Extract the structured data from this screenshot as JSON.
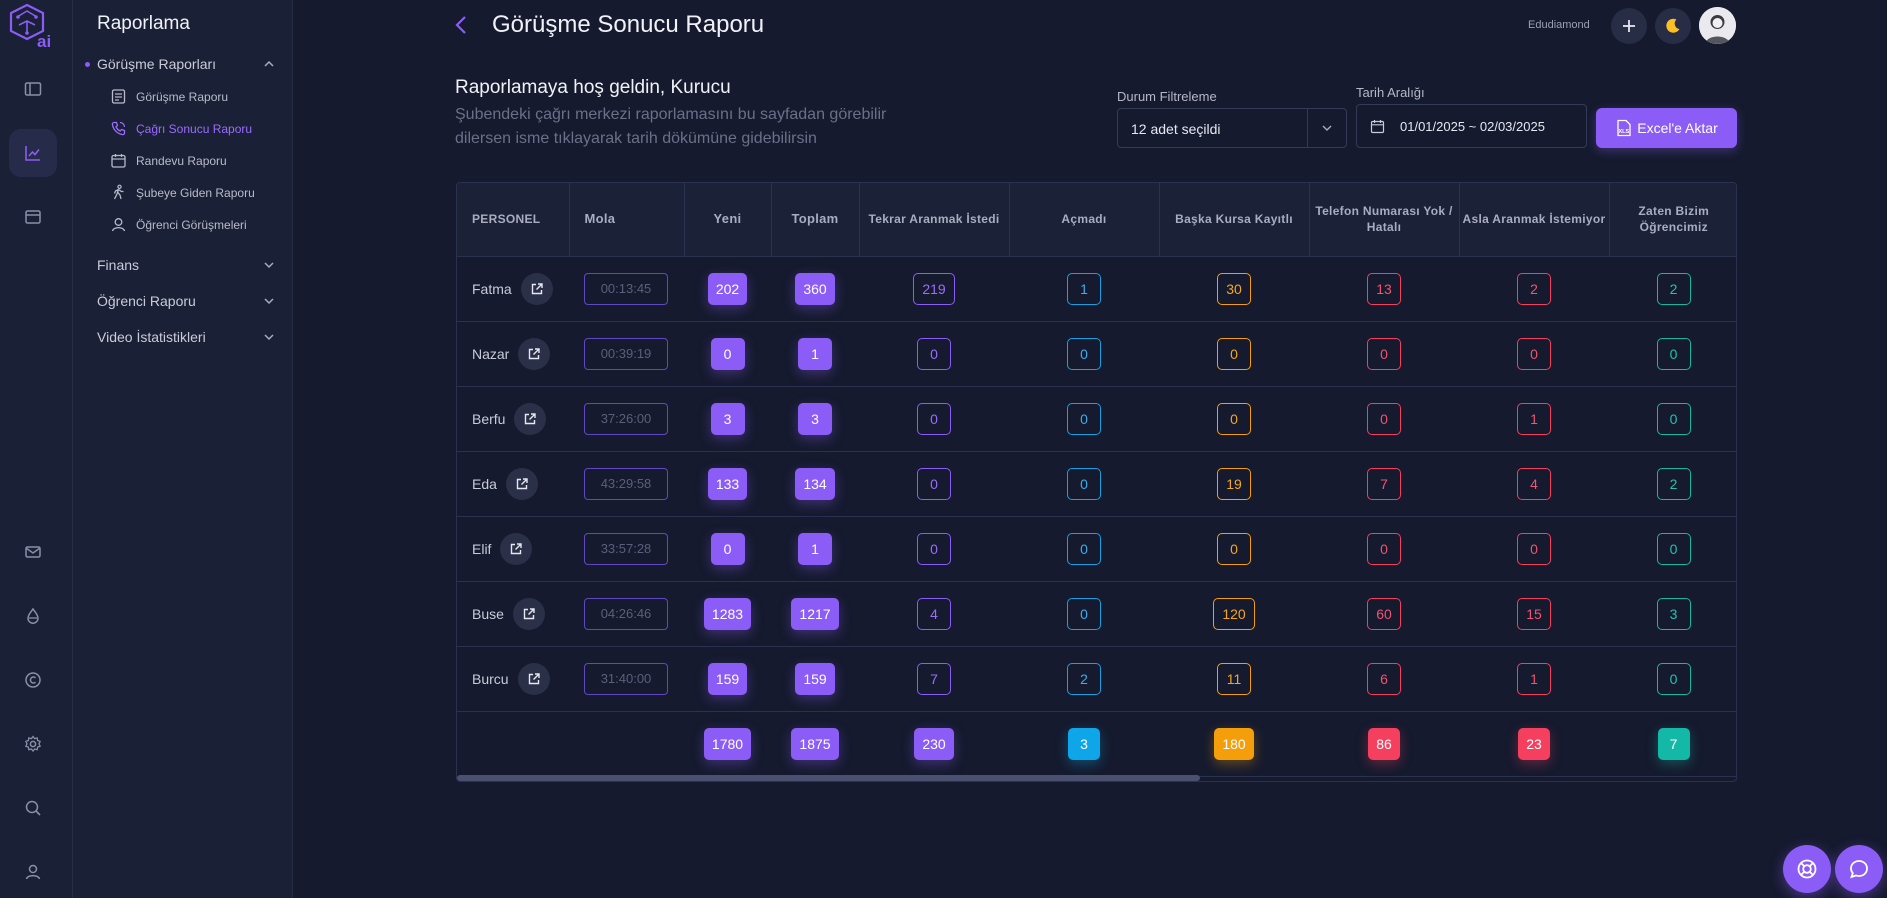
{
  "rail": {
    "logo_text": "ai",
    "top_icons": [
      "sidebar-toggle-icon",
      "chart-line-icon",
      "window-icon"
    ],
    "bottom_icons": [
      "mail-icon",
      "drop-icon",
      "copyright-icon",
      "gear-icon",
      "search-icon",
      "user-icon"
    ]
  },
  "sidebar": {
    "title": "Raporlama",
    "groups": [
      {
        "label": "Görüşme Raporları",
        "expanded": true
      },
      {
        "label": "Finans",
        "expanded": false
      },
      {
        "label": "Öğrenci Raporu",
        "expanded": false
      },
      {
        "label": "Video İstatistikleri",
        "expanded": false
      }
    ],
    "items": [
      {
        "label": "Görüşme Raporu",
        "icon": "document-icon"
      },
      {
        "label": "Çağrı Sonucu Raporu",
        "icon": "phone-call-icon",
        "active": true
      },
      {
        "label": "Randevu Raporu",
        "icon": "calendar-icon"
      },
      {
        "label": "Şubeye Giden Raporu",
        "icon": "walking-icon"
      },
      {
        "label": "Öğrenci Görüşmeleri",
        "icon": "user-icon"
      }
    ]
  },
  "header": {
    "title": "Görüşme Sonucu Raporu",
    "username": "Edudiamond"
  },
  "welcome": {
    "title": "Raporlamaya hoş geldin, Kurucu",
    "subtitle": "Şubendeki çağrı merkezi raporlamasını bu sayfadan görebilir dilersen isme tıklayarak tarih dökümüne gidebilirsin"
  },
  "filters": {
    "status_label": "Durum Filtreleme",
    "status_value": "12 adet seçildi",
    "date_label": "Tarih Aralığı",
    "date_value": "01/01/2025 ~ 02/03/2025",
    "excel_label": "Excel'e Aktar",
    "excel_badge": "XLS"
  },
  "table": {
    "columns": [
      {
        "label": "PERSONEL"
      },
      {
        "label": "Mola"
      },
      {
        "label": "Yeni"
      },
      {
        "label": "Toplam"
      },
      {
        "label": "Tekrar Aranmak İstedi"
      },
      {
        "label": "Açmadı"
      },
      {
        "label": "Başka Kursa Kayıtlı"
      },
      {
        "label": "Telefon Numarası Yok / Hatalı"
      },
      {
        "label": "Asla Aranmak İstemiyor"
      },
      {
        "label": "Zaten Bizim Öğrencimiz"
      }
    ],
    "rows": [
      {
        "name": "Fatma",
        "mola": "00:13:45",
        "yeni": "202",
        "toplam": "360",
        "tekrar": "219",
        "acmadi": "1",
        "baska": "30",
        "telefon": "13",
        "asla": "2",
        "zaten": "2"
      },
      {
        "name": "Nazar",
        "mola": "00:39:19",
        "yeni": "0",
        "toplam": "1",
        "tekrar": "0",
        "acmadi": "0",
        "baska": "0",
        "telefon": "0",
        "asla": "0",
        "zaten": "0"
      },
      {
        "name": "Berfu",
        "mola": "37:26:00",
        "yeni": "3",
        "toplam": "3",
        "tekrar": "0",
        "acmadi": "0",
        "baska": "0",
        "telefon": "0",
        "asla": "1",
        "zaten": "0"
      },
      {
        "name": "Eda",
        "mola": "43:29:58",
        "yeni": "133",
        "toplam": "134",
        "tekrar": "0",
        "acmadi": "0",
        "baska": "19",
        "telefon": "7",
        "asla": "4",
        "zaten": "2"
      },
      {
        "name": "Elif",
        "mola": "33:57:28",
        "yeni": "0",
        "toplam": "1",
        "tekrar": "0",
        "acmadi": "0",
        "baska": "0",
        "telefon": "0",
        "asla": "0",
        "zaten": "0"
      },
      {
        "name": "Buse",
        "mola": "04:26:46",
        "yeni": "1283",
        "toplam": "1217",
        "tekrar": "4",
        "acmadi": "0",
        "baska": "120",
        "telefon": "60",
        "asla": "15",
        "zaten": "3"
      },
      {
        "name": "Burcu",
        "mola": "31:40:00",
        "yeni": "159",
        "toplam": "159",
        "tekrar": "7",
        "acmadi": "2",
        "baska": "11",
        "telefon": "6",
        "asla": "1",
        "zaten": "0"
      }
    ],
    "totals": {
      "yeni": "1780",
      "toplam": "1875",
      "tekrar": "230",
      "acmadi": "3",
      "baska": "180",
      "telefon": "86",
      "asla": "23",
      "zaten": "7"
    }
  },
  "colors": {
    "accent": "#8b5cf6",
    "blue": "#0ea5e9",
    "orange": "#f59e0b",
    "red": "#f43f5e",
    "green": "#14b8a6"
  }
}
